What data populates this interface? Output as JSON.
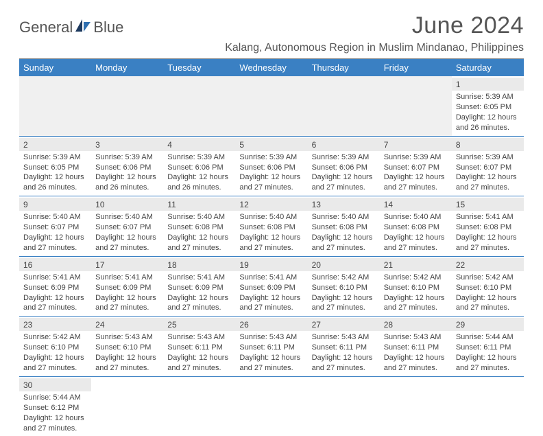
{
  "brand": {
    "word1": "General",
    "word2": "Blue"
  },
  "header": {
    "month_title": "June 2024",
    "location": "Kalang, Autonomous Region in Muslim Mindanao, Philippines"
  },
  "colors": {
    "header_bg": "#3a80c3",
    "header_text": "#ffffff",
    "rule": "#3a80c3",
    "daynum_bg": "#eaeaea",
    "text": "#444444",
    "logo_accent": "#2f6fb0"
  },
  "calendar": {
    "day_names": [
      "Sunday",
      "Monday",
      "Tuesday",
      "Wednesday",
      "Thursday",
      "Friday",
      "Saturday"
    ],
    "weeks": [
      [
        null,
        null,
        null,
        null,
        null,
        null,
        {
          "n": "1",
          "sr": "Sunrise: 5:39 AM",
          "ss": "Sunset: 6:05 PM",
          "d1": "Daylight: 12 hours",
          "d2": "and 26 minutes."
        }
      ],
      [
        {
          "n": "2",
          "sr": "Sunrise: 5:39 AM",
          "ss": "Sunset: 6:05 PM",
          "d1": "Daylight: 12 hours",
          "d2": "and 26 minutes."
        },
        {
          "n": "3",
          "sr": "Sunrise: 5:39 AM",
          "ss": "Sunset: 6:06 PM",
          "d1": "Daylight: 12 hours",
          "d2": "and 26 minutes."
        },
        {
          "n": "4",
          "sr": "Sunrise: 5:39 AM",
          "ss": "Sunset: 6:06 PM",
          "d1": "Daylight: 12 hours",
          "d2": "and 26 minutes."
        },
        {
          "n": "5",
          "sr": "Sunrise: 5:39 AM",
          "ss": "Sunset: 6:06 PM",
          "d1": "Daylight: 12 hours",
          "d2": "and 27 minutes."
        },
        {
          "n": "6",
          "sr": "Sunrise: 5:39 AM",
          "ss": "Sunset: 6:06 PM",
          "d1": "Daylight: 12 hours",
          "d2": "and 27 minutes."
        },
        {
          "n": "7",
          "sr": "Sunrise: 5:39 AM",
          "ss": "Sunset: 6:07 PM",
          "d1": "Daylight: 12 hours",
          "d2": "and 27 minutes."
        },
        {
          "n": "8",
          "sr": "Sunrise: 5:39 AM",
          "ss": "Sunset: 6:07 PM",
          "d1": "Daylight: 12 hours",
          "d2": "and 27 minutes."
        }
      ],
      [
        {
          "n": "9",
          "sr": "Sunrise: 5:40 AM",
          "ss": "Sunset: 6:07 PM",
          "d1": "Daylight: 12 hours",
          "d2": "and 27 minutes."
        },
        {
          "n": "10",
          "sr": "Sunrise: 5:40 AM",
          "ss": "Sunset: 6:07 PM",
          "d1": "Daylight: 12 hours",
          "d2": "and 27 minutes."
        },
        {
          "n": "11",
          "sr": "Sunrise: 5:40 AM",
          "ss": "Sunset: 6:08 PM",
          "d1": "Daylight: 12 hours",
          "d2": "and 27 minutes."
        },
        {
          "n": "12",
          "sr": "Sunrise: 5:40 AM",
          "ss": "Sunset: 6:08 PM",
          "d1": "Daylight: 12 hours",
          "d2": "and 27 minutes."
        },
        {
          "n": "13",
          "sr": "Sunrise: 5:40 AM",
          "ss": "Sunset: 6:08 PM",
          "d1": "Daylight: 12 hours",
          "d2": "and 27 minutes."
        },
        {
          "n": "14",
          "sr": "Sunrise: 5:40 AM",
          "ss": "Sunset: 6:08 PM",
          "d1": "Daylight: 12 hours",
          "d2": "and 27 minutes."
        },
        {
          "n": "15",
          "sr": "Sunrise: 5:41 AM",
          "ss": "Sunset: 6:08 PM",
          "d1": "Daylight: 12 hours",
          "d2": "and 27 minutes."
        }
      ],
      [
        {
          "n": "16",
          "sr": "Sunrise: 5:41 AM",
          "ss": "Sunset: 6:09 PM",
          "d1": "Daylight: 12 hours",
          "d2": "and 27 minutes."
        },
        {
          "n": "17",
          "sr": "Sunrise: 5:41 AM",
          "ss": "Sunset: 6:09 PM",
          "d1": "Daylight: 12 hours",
          "d2": "and 27 minutes."
        },
        {
          "n": "18",
          "sr": "Sunrise: 5:41 AM",
          "ss": "Sunset: 6:09 PM",
          "d1": "Daylight: 12 hours",
          "d2": "and 27 minutes."
        },
        {
          "n": "19",
          "sr": "Sunrise: 5:41 AM",
          "ss": "Sunset: 6:09 PM",
          "d1": "Daylight: 12 hours",
          "d2": "and 27 minutes."
        },
        {
          "n": "20",
          "sr": "Sunrise: 5:42 AM",
          "ss": "Sunset: 6:10 PM",
          "d1": "Daylight: 12 hours",
          "d2": "and 27 minutes."
        },
        {
          "n": "21",
          "sr": "Sunrise: 5:42 AM",
          "ss": "Sunset: 6:10 PM",
          "d1": "Daylight: 12 hours",
          "d2": "and 27 minutes."
        },
        {
          "n": "22",
          "sr": "Sunrise: 5:42 AM",
          "ss": "Sunset: 6:10 PM",
          "d1": "Daylight: 12 hours",
          "d2": "and 27 minutes."
        }
      ],
      [
        {
          "n": "23",
          "sr": "Sunrise: 5:42 AM",
          "ss": "Sunset: 6:10 PM",
          "d1": "Daylight: 12 hours",
          "d2": "and 27 minutes."
        },
        {
          "n": "24",
          "sr": "Sunrise: 5:43 AM",
          "ss": "Sunset: 6:10 PM",
          "d1": "Daylight: 12 hours",
          "d2": "and 27 minutes."
        },
        {
          "n": "25",
          "sr": "Sunrise: 5:43 AM",
          "ss": "Sunset: 6:11 PM",
          "d1": "Daylight: 12 hours",
          "d2": "and 27 minutes."
        },
        {
          "n": "26",
          "sr": "Sunrise: 5:43 AM",
          "ss": "Sunset: 6:11 PM",
          "d1": "Daylight: 12 hours",
          "d2": "and 27 minutes."
        },
        {
          "n": "27",
          "sr": "Sunrise: 5:43 AM",
          "ss": "Sunset: 6:11 PM",
          "d1": "Daylight: 12 hours",
          "d2": "and 27 minutes."
        },
        {
          "n": "28",
          "sr": "Sunrise: 5:43 AM",
          "ss": "Sunset: 6:11 PM",
          "d1": "Daylight: 12 hours",
          "d2": "and 27 minutes."
        },
        {
          "n": "29",
          "sr": "Sunrise: 5:44 AM",
          "ss": "Sunset: 6:11 PM",
          "d1": "Daylight: 12 hours",
          "d2": "and 27 minutes."
        }
      ],
      [
        {
          "n": "30",
          "sr": "Sunrise: 5:44 AM",
          "ss": "Sunset: 6:12 PM",
          "d1": "Daylight: 12 hours",
          "d2": "and 27 minutes."
        },
        null,
        null,
        null,
        null,
        null,
        null
      ]
    ]
  }
}
